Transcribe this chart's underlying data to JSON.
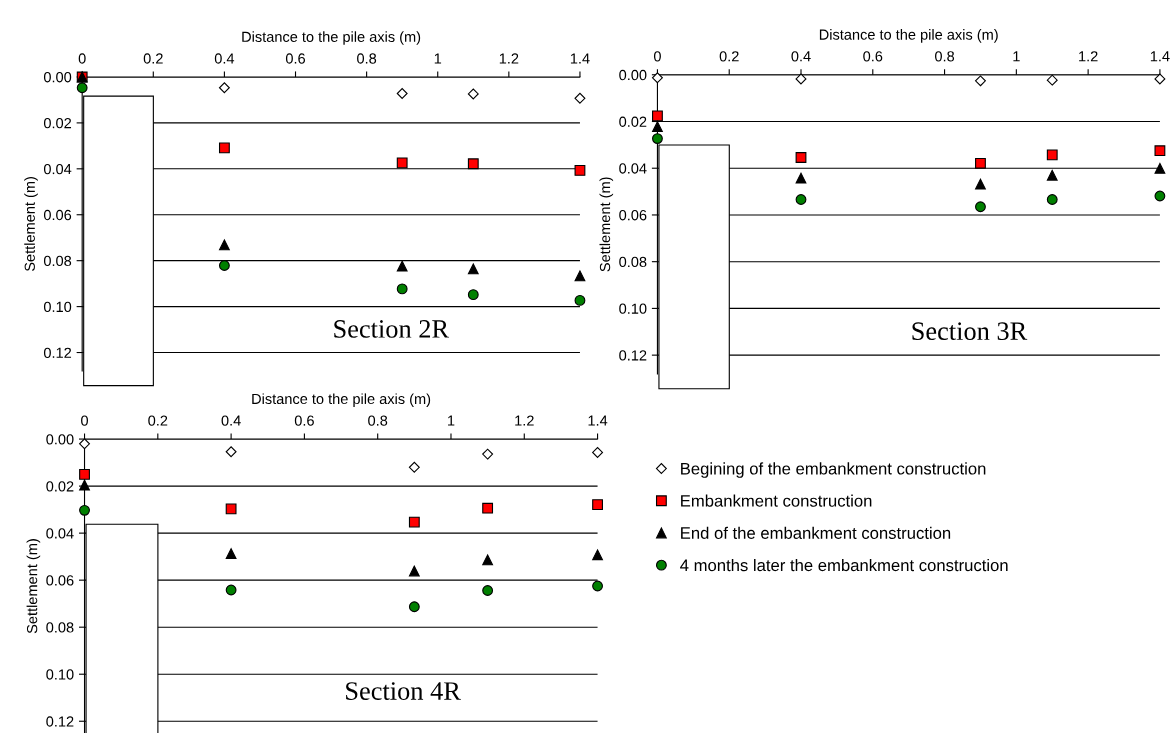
{
  "chart_data": [
    {
      "type": "scatter",
      "title": "Section 2R",
      "xlabel": "Distance to the pile axis (m)",
      "ylabel": "Settlement (m)",
      "x": [
        0,
        0.4,
        0.9,
        1.1,
        1.4
      ],
      "series": [
        {
          "name": "Begining of the embankment construction",
          "color": "#ffffff",
          "marker": "diamond",
          "values": [
            null,
            0.0047,
            0.0072,
            0.0074,
            0.0093
          ]
        },
        {
          "name": "Embankment construction",
          "color": "#ff0000",
          "marker": "square",
          "values": [
            0.0,
            0.0309,
            0.0374,
            0.0378,
            0.0407
          ]
        },
        {
          "name": "End of the embankment construction",
          "color": "#000000",
          "marker": "triangle",
          "values": [
            0.0,
            0.0731,
            0.0824,
            0.0836,
            0.0866
          ]
        },
        {
          "name": "4 months later the embankment construction",
          "color": "#008000",
          "marker": "circle",
          "values": [
            0.0047,
            0.0821,
            0.0923,
            0.0948,
            0.0973
          ]
        }
      ],
      "xlim": [
        0,
        1.4
      ],
      "xticks": [
        0,
        0.2,
        0.4,
        0.6,
        0.8,
        1,
        1.2,
        1.4
      ],
      "ylim": [
        0.128,
        0
      ],
      "yticks": [
        {
          "value": 0,
          "label": "0.00"
        },
        {
          "value": 0.02,
          "label": "0.02"
        },
        {
          "value": 0.04,
          "label": "0.04"
        },
        {
          "value": 0.06,
          "label": "0.06"
        },
        {
          "value": 0.08,
          "label": "0.08"
        },
        {
          "value": 0.1,
          "label": "0.10"
        },
        {
          "value": 0.12,
          "label": "0.12"
        }
      ],
      "grid": "y",
      "legend": "bottom right"
    },
    {
      "type": "scatter",
      "title": "Section 3R",
      "xlabel": "Distance to the pile axis (m)",
      "ylabel": "Settlement (m)",
      "x": [
        0,
        0.4,
        0.9,
        1.1,
        1.4
      ],
      "series": [
        {
          "color": "#ffffff",
          "marker": "diamond",
          "values": [
            0.0013,
            0.0018,
            0.0026,
            0.0023,
            0.0018
          ]
        },
        {
          "color": "#ff0000",
          "marker": "square",
          "values": [
            0.0176,
            0.0354,
            0.0379,
            0.0343,
            0.0325
          ]
        },
        {
          "color": "#000000",
          "marker": "triangle",
          "values": [
            0.0222,
            0.0442,
            0.0468,
            0.043,
            0.0401
          ]
        },
        {
          "color": "#008000",
          "marker": "circle",
          "values": [
            0.0273,
            0.0534,
            0.0565,
            0.0534,
            0.0519
          ]
        }
      ],
      "xlim": [
        0,
        1.4
      ],
      "xticks": [
        0,
        0.2,
        0.4,
        0.6,
        0.8,
        1,
        1.2,
        1.4
      ],
      "ylim": [
        0.128,
        0
      ],
      "yticks": [
        {
          "value": 0,
          "label": "0.00"
        },
        {
          "value": 0.02,
          "label": "0.02"
        },
        {
          "value": 0.04,
          "label": "0.04"
        },
        {
          "value": 0.06,
          "label": "0.06"
        },
        {
          "value": 0.08,
          "label": "0.08"
        },
        {
          "value": 0.1,
          "label": "0.10"
        },
        {
          "value": 0.12,
          "label": "0.12"
        }
      ],
      "grid": "y"
    },
    {
      "type": "scatter",
      "title": "Section 4R",
      "xlabel": "Distance to the pile axis (m)",
      "ylabel": "Settlement (m)",
      "x": [
        0,
        0.4,
        0.9,
        1.1,
        1.4
      ],
      "series": [
        {
          "color": "#ffffff",
          "marker": "diamond",
          "values": [
            0.002,
            0.0054,
            0.012,
            0.0064,
            0.0057
          ]
        },
        {
          "color": "#ff0000",
          "marker": "square",
          "values": [
            0.015,
            0.0297,
            0.0353,
            0.0294,
            0.0279
          ]
        },
        {
          "color": "#000000",
          "marker": "triangle",
          "values": [
            0.0196,
            0.0487,
            0.0561,
            0.0514,
            0.0492
          ]
        },
        {
          "color": "#008000",
          "marker": "circle",
          "values": [
            0.0303,
            0.0642,
            0.0713,
            0.0644,
            0.0625
          ]
        }
      ],
      "xlim": [
        0,
        1.4
      ],
      "xticks": [
        0,
        0.2,
        0.4,
        0.6,
        0.8,
        1,
        1.2,
        1.4
      ],
      "ylim": [
        0.125,
        0
      ],
      "yticks": [
        {
          "value": 0,
          "label": "0.00"
        },
        {
          "value": 0.02,
          "label": "0.02"
        },
        {
          "value": 0.04,
          "label": "0.04"
        },
        {
          "value": 0.06,
          "label": "0.06"
        },
        {
          "value": 0.08,
          "label": "0.08"
        },
        {
          "value": 0.1,
          "label": "0.10"
        },
        {
          "value": 0.12,
          "label": "0.12"
        }
      ],
      "grid": "y"
    }
  ]
}
